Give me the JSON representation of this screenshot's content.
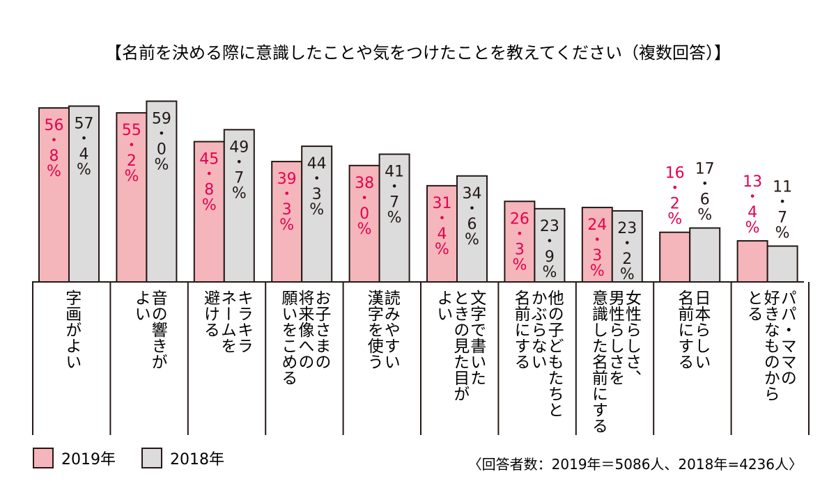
{
  "chart_data": {
    "type": "bar",
    "title": "【名前を決める際に意識したことや気をつけたことを教えてください（複数回答）】",
    "categories": [
      [
        "字画がよい"
      ],
      [
        "音の響きが",
        "よい"
      ],
      [
        "キラキラ",
        "ネームを",
        "避ける"
      ],
      [
        "お子さまの",
        "将来像への",
        "願いをこめる"
      ],
      [
        "読みやすい",
        "漢字を使う"
      ],
      [
        "文字で書いた",
        "ときの見た目が",
        "よい"
      ],
      [
        "他の子どもたちと",
        "かぶらない",
        "名前にする"
      ],
      [
        "女性らしさ、",
        "男性らしさを",
        "意識した名前にする"
      ],
      [
        "日本らしい",
        "名前にする"
      ],
      [
        "パパ・ママの",
        "好きなものから",
        "とる"
      ]
    ],
    "series": [
      {
        "name": "2019年",
        "values": [
          56.8,
          55.2,
          45.8,
          39.3,
          38.0,
          31.4,
          26.3,
          24.3,
          16.2,
          13.4
        ]
      },
      {
        "name": "2018年",
        "values": [
          57.4,
          59.0,
          49.7,
          44.3,
          41.7,
          34.6,
          23.9,
          23.2,
          17.6,
          11.7
        ]
      }
    ],
    "value_labels": {
      "2019年": [
        [
          "56",
          "・",
          "8",
          "%"
        ],
        [
          "55",
          "・",
          "2",
          "%"
        ],
        [
          "45",
          "・",
          "8",
          "%"
        ],
        [
          "39",
          "・",
          "3",
          "%"
        ],
        [
          "38",
          "・",
          "0",
          "%"
        ],
        [
          "31",
          "・",
          "4",
          "%"
        ],
        [
          "26",
          "・",
          "3",
          "%"
        ],
        [
          "24",
          "・",
          "3",
          "%"
        ],
        [
          "16",
          "・",
          "2",
          "%"
        ],
        [
          "13",
          "・",
          "4",
          "%"
        ]
      ],
      "2018年": [
        [
          "57",
          "・",
          "4",
          "%"
        ],
        [
          "59",
          "・",
          "0",
          "%"
        ],
        [
          "49",
          "・",
          "7",
          "%"
        ],
        [
          "44",
          "・",
          "3",
          "%"
        ],
        [
          "41",
          "・",
          "7",
          "%"
        ],
        [
          "34",
          "・",
          "6",
          "%"
        ],
        [
          "23",
          "・",
          "9",
          "%"
        ],
        [
          "23",
          "・",
          "2",
          "%"
        ],
        [
          "17",
          "・",
          "6",
          "%"
        ],
        [
          "11",
          "・",
          "7",
          "%"
        ]
      ]
    },
    "legend": [
      "2019年",
      "2018年"
    ],
    "legend_position": "bottom-left",
    "note": "〈回答者数：2019年＝5086人、2018年=4236人〉",
    "ylim": [
      0,
      60
    ],
    "grid": false
  },
  "colors": {
    "series_2019": "#f4b6bb",
    "series_2018": "#dcdcdd",
    "label_2019": "#e5004f",
    "label_2018": "#231815",
    "line": "#231815"
  }
}
